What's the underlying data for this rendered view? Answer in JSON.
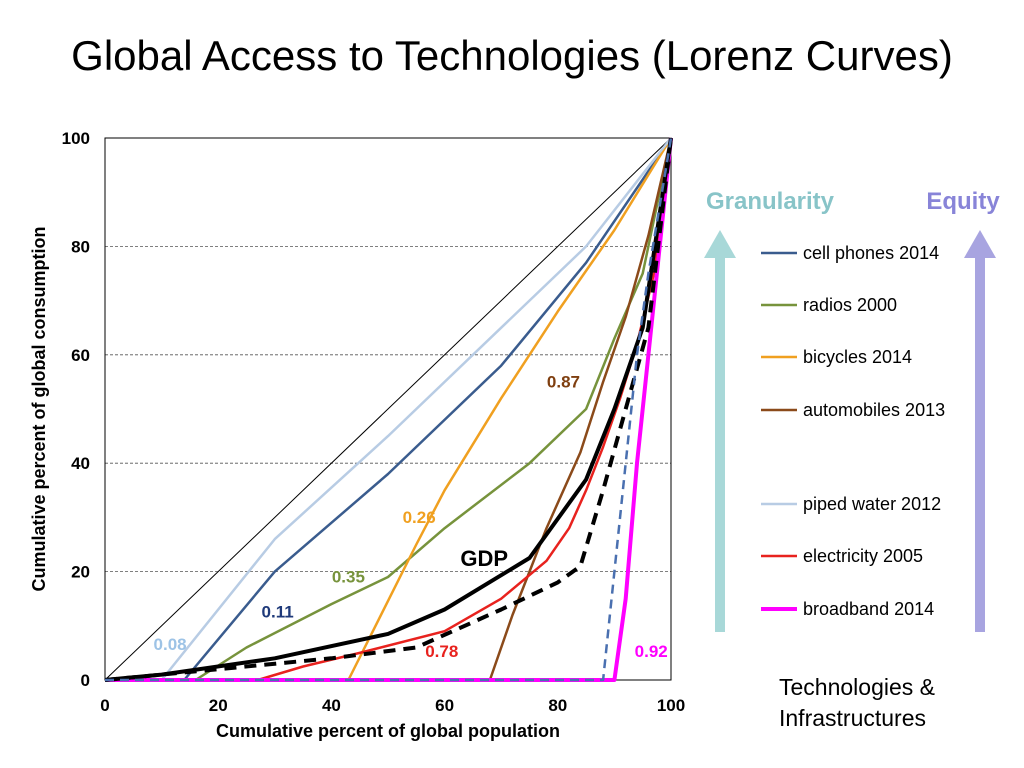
{
  "chart_data": {
    "type": "line",
    "title": "Global Access to Technologies (Lorenz Curves)",
    "xlabel": "Cumulative percent of global population",
    "ylabel": "Cumulative percent of global consumption",
    "xlim": [
      0,
      100
    ],
    "ylim": [
      0,
      100
    ],
    "x_ticks": [
      0,
      20,
      40,
      60,
      80,
      100
    ],
    "y_ticks": [
      0,
      20,
      40,
      60,
      80,
      100
    ],
    "grid": "horizontal dashed",
    "legend_position": "right",
    "series": [
      {
        "key": "equality",
        "name": "",
        "color": "#000000",
        "width": 1,
        "dash": "",
        "points": [
          [
            0,
            0
          ],
          [
            100,
            100
          ]
        ]
      },
      {
        "key": "cell",
        "name": "cell phones 2014",
        "color": "#3A5C8E",
        "width": 2.5,
        "dash": "",
        "points": [
          [
            0,
            0
          ],
          [
            14,
            0
          ],
          [
            30,
            20
          ],
          [
            50,
            38
          ],
          [
            70,
            58
          ],
          [
            85,
            77
          ],
          [
            100,
            100
          ]
        ]
      },
      {
        "key": "radios",
        "name": "radios 2000",
        "color": "#77933C",
        "width": 2.5,
        "dash": "",
        "points": [
          [
            0,
            0
          ],
          [
            16,
            0
          ],
          [
            25,
            6
          ],
          [
            40,
            14
          ],
          [
            50,
            19
          ],
          [
            60,
            28
          ],
          [
            75,
            40
          ],
          [
            85,
            50
          ],
          [
            90,
            63
          ],
          [
            95,
            75
          ],
          [
            100,
            100
          ]
        ]
      },
      {
        "key": "bicycles",
        "name": "bicycles 2014",
        "color": "#F0A020",
        "width": 2.5,
        "dash": "",
        "points": [
          [
            0,
            0
          ],
          [
            43,
            0
          ],
          [
            55,
            25
          ],
          [
            60,
            35
          ],
          [
            70,
            52
          ],
          [
            80,
            68
          ],
          [
            90,
            83
          ],
          [
            100,
            100
          ]
        ]
      },
      {
        "key": "auto",
        "name": "automobiles 2013",
        "color": "#8B4A1A",
        "width": 2.5,
        "dash": "",
        "points": [
          [
            0,
            0
          ],
          [
            68,
            0
          ],
          [
            72,
            12
          ],
          [
            78,
            28
          ],
          [
            84,
            42
          ],
          [
            88,
            55
          ],
          [
            92,
            67
          ],
          [
            96,
            82
          ],
          [
            100,
            100
          ]
        ]
      },
      {
        "key": "water",
        "name": "piped water 2012",
        "color": "#B8CCE4",
        "width": 2.5,
        "dash": "",
        "points": [
          [
            0,
            0
          ],
          [
            10,
            0
          ],
          [
            30,
            26
          ],
          [
            50,
            45
          ],
          [
            70,
            65
          ],
          [
            85,
            80
          ],
          [
            100,
            100
          ]
        ]
      },
      {
        "key": "electricity",
        "name": "electricity 2005",
        "color": "#E8221E",
        "width": 2.5,
        "dash": "",
        "points": [
          [
            0,
            0
          ],
          [
            27,
            0
          ],
          [
            35,
            2.5
          ],
          [
            45,
            5
          ],
          [
            60,
            9
          ],
          [
            70,
            15
          ],
          [
            78,
            22
          ],
          [
            82,
            28
          ],
          [
            85,
            35
          ],
          [
            88,
            43
          ],
          [
            91,
            52
          ],
          [
            94,
            62
          ],
          [
            97,
            75
          ],
          [
            100,
            100
          ]
        ]
      },
      {
        "key": "broadband",
        "name": "broadband 2014",
        "color": "#FF00FF",
        "width": 4,
        "dash": "",
        "points": [
          [
            0,
            0
          ],
          [
            90,
            0
          ],
          [
            92,
            15
          ],
          [
            94,
            40
          ],
          [
            96,
            60
          ],
          [
            98,
            80
          ],
          [
            100,
            100
          ]
        ]
      },
      {
        "key": "gdp",
        "name": "GDP",
        "color": "#000000",
        "width": 4,
        "dash": "",
        "points": [
          [
            0,
            0
          ],
          [
            10,
            1
          ],
          [
            30,
            4
          ],
          [
            50,
            8.5
          ],
          [
            60,
            13
          ],
          [
            75,
            22.5
          ],
          [
            85,
            37
          ],
          [
            90,
            50
          ],
          [
            95,
            65
          ],
          [
            100,
            100
          ]
        ]
      },
      {
        "key": "gdp_dashed",
        "name": "",
        "color": "#000000",
        "width": 4,
        "dash": "12,8",
        "points": [
          [
            0,
            0
          ],
          [
            20,
            2
          ],
          [
            40,
            4
          ],
          [
            55,
            6
          ],
          [
            70,
            13
          ],
          [
            80,
            18
          ],
          [
            84,
            21
          ],
          [
            88,
            35
          ],
          [
            92,
            50
          ],
          [
            96,
            65
          ],
          [
            100,
            100
          ]
        ]
      },
      {
        "key": "blue_dashed",
        "name": "",
        "color": "#4A70B0",
        "width": 2.5,
        "dash": "9,6",
        "points": [
          [
            0,
            0
          ],
          [
            88,
            0
          ],
          [
            90,
            20
          ],
          [
            92,
            40
          ],
          [
            94,
            60
          ],
          [
            96,
            75
          ],
          [
            100,
            100
          ]
        ]
      }
    ],
    "annotations": [
      {
        "text": "0.08",
        "x": 11.5,
        "y": 5.5,
        "color": "#9DC3E6"
      },
      {
        "text": "0.11",
        "x": 30.5,
        "y": 11.5,
        "color": "#1F3A7A"
      },
      {
        "text": "0.35",
        "x": 43,
        "y": 18,
        "color": "#77933C"
      },
      {
        "text": "0.26",
        "x": 55.5,
        "y": 29,
        "color": "#F0A020"
      },
      {
        "text": "0.87",
        "x": 81,
        "y": 54,
        "color": "#7F3F10"
      },
      {
        "text": "0.78",
        "x": 59.5,
        "y": 4.2,
        "color": "#E8221E"
      },
      {
        "text": "0.92",
        "x": 96.5,
        "y": 4.2,
        "color": "#FF00FF"
      }
    ],
    "gdp_label": {
      "text": "GDP",
      "x": 67,
      "y": 21
    }
  },
  "legend_items": [
    {
      "name": "cell phones 2014",
      "color": "#3A5C8E",
      "width": 2.5
    },
    {
      "name": "radios 2000",
      "color": "#77933C",
      "width": 2.5
    },
    {
      "name": "bicycles 2014",
      "color": "#F0A020",
      "width": 2.5
    },
    {
      "name": "automobiles 2013",
      "color": "#8B4A1A",
      "width": 2.5
    },
    {
      "name": "piped water 2012",
      "color": "#B8CCE4",
      "width": 2.5
    },
    {
      "name": "electricity 2005",
      "color": "#E8221E",
      "width": 2.5
    },
    {
      "name": "broadband 2014",
      "color": "#FF00FF",
      "width": 4
    }
  ],
  "arrows": {
    "granularity": {
      "label": "Granularity",
      "color": "#A8D8D8",
      "text_color": "#88C4C8"
    },
    "equity": {
      "label": "Equity",
      "color": "#A8A4E0",
      "text_color": "#8884D8"
    }
  },
  "footer": {
    "line1": "Technologies &",
    "line2": "Infrastructures"
  }
}
